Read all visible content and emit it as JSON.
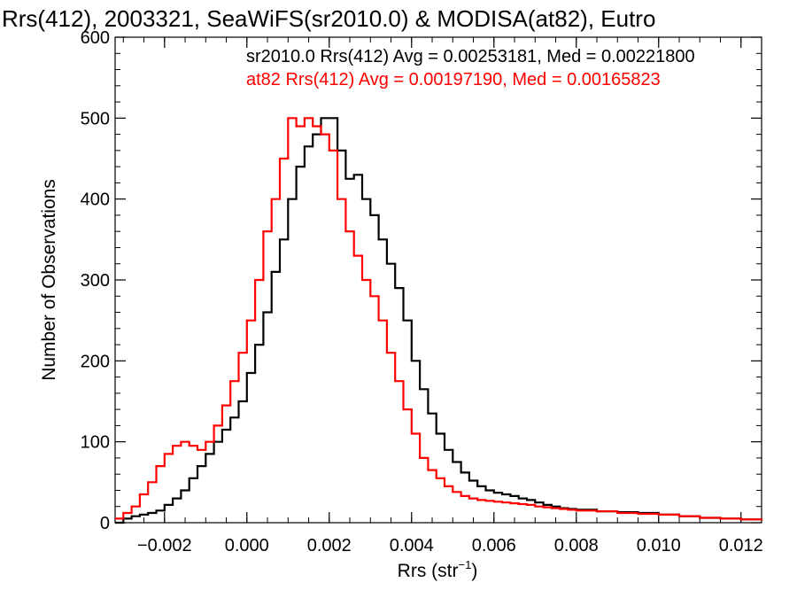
{
  "chart_data": {
    "type": "line",
    "title": "Rrs(412), 2003321, SeaWiFS(sr2010.0) & MODISA(at82), Eutro",
    "xlabel_main": "Rrs (str",
    "xlabel_sup": "−1",
    "xlabel_close": ")",
    "ylabel": "Number of Observations",
    "xlim": [
      -0.0032,
      0.0125
    ],
    "ylim": [
      0,
      600
    ],
    "x_ticks": [
      -0.002,
      0.0,
      0.002,
      0.004,
      0.006,
      0.008,
      0.01,
      0.012
    ],
    "x_tick_labels": [
      "−0.002",
      "0.000",
      "0.002",
      "0.004",
      "0.006",
      "0.008",
      "0.010",
      "0.012"
    ],
    "y_ticks": [
      0,
      100,
      200,
      300,
      400,
      500,
      600
    ],
    "y_tick_labels": [
      "0",
      "100",
      "200",
      "300",
      "400",
      "500",
      "600"
    ],
    "grid": false,
    "series": [
      {
        "name": "sr2010.0",
        "color": "#000000",
        "legend_text": "sr2010.0 Rrs(412) Avg = 0.00253181, Med = 0.00221800",
        "x": [
          -0.0032,
          -0.003,
          -0.0028,
          -0.0026,
          -0.0024,
          -0.0022,
          -0.002,
          -0.0018,
          -0.0016,
          -0.0014,
          -0.0012,
          -0.001,
          -0.0008,
          -0.0006,
          -0.0004,
          -0.0002,
          0.0,
          0.0002,
          0.0004,
          0.0006,
          0.0008,
          0.001,
          0.0012,
          0.0014,
          0.0016,
          0.0018,
          0.002,
          0.0022,
          0.0024,
          0.0026,
          0.0028,
          0.003,
          0.0032,
          0.0034,
          0.0036,
          0.0038,
          0.004,
          0.0042,
          0.0044,
          0.0046,
          0.0048,
          0.005,
          0.0052,
          0.0054,
          0.0056,
          0.0058,
          0.006,
          0.0062,
          0.0064,
          0.0066,
          0.0068,
          0.007,
          0.0072,
          0.0074,
          0.0076,
          0.0078,
          0.008,
          0.0085,
          0.009,
          0.0095,
          0.01,
          0.0105,
          0.011,
          0.0115,
          0.012,
          0.0125
        ],
        "y": [
          0,
          5,
          8,
          10,
          12,
          15,
          22,
          30,
          40,
          55,
          70,
          85,
          100,
          115,
          130,
          150,
          185,
          220,
          260,
          310,
          350,
          400,
          440,
          465,
          480,
          500,
          500,
          460,
          425,
          430,
          400,
          380,
          350,
          320,
          290,
          250,
          200,
          165,
          135,
          110,
          90,
          75,
          62,
          52,
          45,
          40,
          37,
          35,
          33,
          30,
          28,
          25,
          22,
          20,
          18,
          17,
          16,
          14,
          13,
          12,
          10,
          8,
          6,
          5,
          4,
          3
        ]
      },
      {
        "name": "at82",
        "color": "#ff0000",
        "legend_text": "at82 Rrs(412) Avg = 0.00197190, Med = 0.00165823",
        "x": [
          -0.0032,
          -0.003,
          -0.0028,
          -0.0026,
          -0.0024,
          -0.0022,
          -0.002,
          -0.0018,
          -0.0016,
          -0.0014,
          -0.0012,
          -0.001,
          -0.0008,
          -0.0006,
          -0.0004,
          -0.0002,
          0.0,
          0.0002,
          0.0004,
          0.0006,
          0.0008,
          0.001,
          0.0012,
          0.0014,
          0.0016,
          0.0018,
          0.002,
          0.0022,
          0.0024,
          0.0026,
          0.0028,
          0.003,
          0.0032,
          0.0034,
          0.0036,
          0.0038,
          0.004,
          0.0042,
          0.0044,
          0.0046,
          0.0048,
          0.005,
          0.0052,
          0.0054,
          0.0056,
          0.0058,
          0.006,
          0.0062,
          0.0064,
          0.0066,
          0.0068,
          0.007,
          0.0072,
          0.0074,
          0.0076,
          0.0078,
          0.008,
          0.0085,
          0.009,
          0.0095,
          0.01,
          0.0105,
          0.011,
          0.0115,
          0.012,
          0.0125
        ],
        "y": [
          5,
          12,
          20,
          35,
          50,
          70,
          85,
          95,
          100,
          95,
          90,
          100,
          120,
          145,
          175,
          210,
          250,
          300,
          360,
          400,
          450,
          500,
          490,
          500,
          490,
          480,
          460,
          400,
          360,
          330,
          300,
          280,
          250,
          210,
          175,
          140,
          110,
          80,
          65,
          55,
          45,
          38,
          33,
          30,
          28,
          27,
          26,
          25,
          24,
          23,
          22,
          20,
          19,
          18,
          17,
          16,
          15,
          14,
          12,
          11,
          10,
          8,
          6,
          5,
          4,
          3
        ]
      }
    ]
  }
}
